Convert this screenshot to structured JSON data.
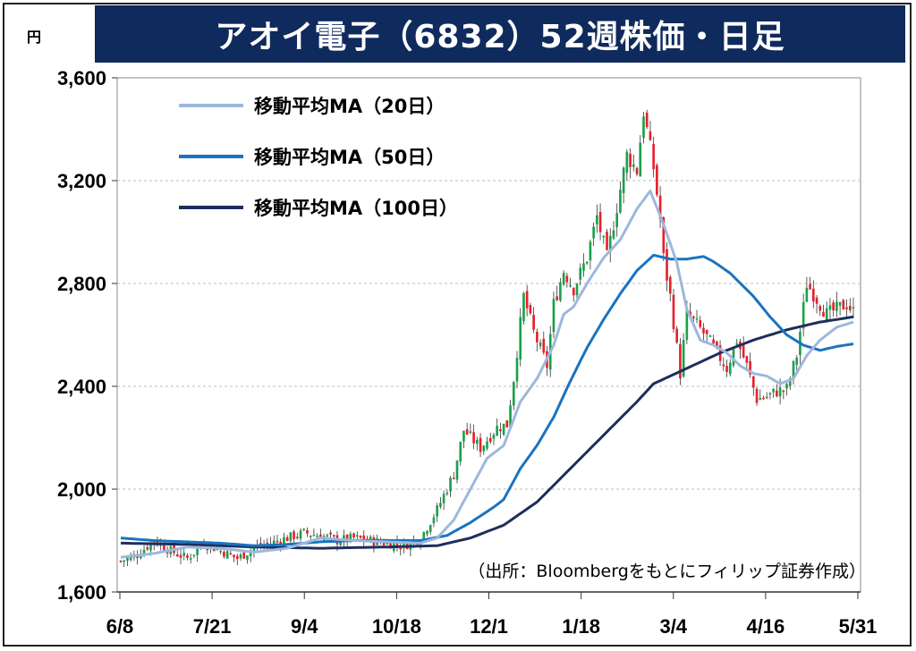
{
  "header": {
    "unit": "円",
    "title": "アオイ電子（6832）52週株価・日足"
  },
  "source_note": "（出所：Bloombergをもとにフィリップ証券作成）",
  "chart_data": {
    "type": "candlestick",
    "title": "アオイ電子（6832）52週株価・日足",
    "ylabel": "円",
    "ylim": [
      1600,
      3600
    ],
    "y_ticks": [
      "3,600",
      "3,200",
      "2,800",
      "2,400",
      "2,000",
      "1,600"
    ],
    "y_tick_values": [
      3600,
      3200,
      2800,
      2400,
      2000,
      1600
    ],
    "x_ticks": [
      "6/8",
      "7/21",
      "9/4",
      "10/18",
      "12/1",
      "1/18",
      "3/4",
      "4/16",
      "5/31"
    ],
    "up_color": "#1aa04a",
    "down_color": "#e81f2a",
    "legend": [
      {
        "label": "移動平均MA（20日）",
        "color": "#9db8dc"
      },
      {
        "label": "移動平均MA（50日）",
        "color": "#1b73c0"
      },
      {
        "label": "移動平均MA（100日）",
        "color": "#1d2f5c"
      }
    ],
    "close_anchors": [
      [
        0,
        1720
      ],
      [
        5,
        1745
      ],
      [
        10,
        1800
      ],
      [
        15,
        1760
      ],
      [
        20,
        1730
      ],
      [
        25,
        1790
      ],
      [
        30,
        1760
      ],
      [
        35,
        1730
      ],
      [
        40,
        1770
      ],
      [
        45,
        1790
      ],
      [
        50,
        1810
      ],
      [
        55,
        1830
      ],
      [
        60,
        1820
      ],
      [
        65,
        1800
      ],
      [
        70,
        1810
      ],
      [
        75,
        1800
      ],
      [
        80,
        1790
      ],
      [
        85,
        1780
      ],
      [
        90,
        1810
      ],
      [
        95,
        1920
      ],
      [
        100,
        2060
      ],
      [
        103,
        2230
      ],
      [
        108,
        2160
      ],
      [
        113,
        2240
      ],
      [
        116,
        2250
      ],
      [
        118,
        2430
      ],
      [
        121,
        2750
      ],
      [
        124,
        2610
      ],
      [
        128,
        2480
      ],
      [
        130,
        2720
      ],
      [
        133,
        2850
      ],
      [
        136,
        2780
      ],
      [
        140,
        2900
      ],
      [
        143,
        3060
      ],
      [
        146,
        2900
      ],
      [
        149,
        3100
      ],
      [
        152,
        3300
      ],
      [
        155,
        3240
      ],
      [
        157,
        3470
      ],
      [
        160,
        3250
      ],
      [
        162,
        3050
      ],
      [
        163,
        2900
      ],
      [
        165,
        2750
      ],
      [
        168,
        2450
      ],
      [
        170,
        2680
      ],
      [
        173,
        2640
      ],
      [
        176,
        2590
      ],
      [
        179,
        2530
      ],
      [
        182,
        2470
      ],
      [
        185,
        2580
      ],
      [
        188,
        2480
      ],
      [
        191,
        2350
      ],
      [
        194,
        2360
      ],
      [
        197,
        2380
      ],
      [
        200,
        2390
      ],
      [
        203,
        2520
      ],
      [
        206,
        2800
      ],
      [
        209,
        2740
      ],
      [
        212,
        2680
      ],
      [
        215,
        2700
      ],
      [
        218,
        2720
      ],
      [
        220,
        2690
      ]
    ],
    "ma20_anchors": [
      [
        0,
        1735
      ],
      [
        10,
        1750
      ],
      [
        20,
        1775
      ],
      [
        30,
        1770
      ],
      [
        40,
        1755
      ],
      [
        50,
        1770
      ],
      [
        60,
        1810
      ],
      [
        70,
        1800
      ],
      [
        80,
        1795
      ],
      [
        90,
        1790
      ],
      [
        95,
        1810
      ],
      [
        100,
        1880
      ],
      [
        105,
        2000
      ],
      [
        110,
        2120
      ],
      [
        115,
        2170
      ],
      [
        120,
        2340
      ],
      [
        125,
        2430
      ],
      [
        130,
        2560
      ],
      [
        133,
        2680
      ],
      [
        136,
        2710
      ],
      [
        140,
        2800
      ],
      [
        145,
        2900
      ],
      [
        150,
        2970
      ],
      [
        155,
        3090
      ],
      [
        159,
        3160
      ],
      [
        163,
        3030
      ],
      [
        167,
        2880
      ],
      [
        170,
        2700
      ],
      [
        174,
        2580
      ],
      [
        178,
        2560
      ],
      [
        182,
        2530
      ],
      [
        186,
        2480
      ],
      [
        190,
        2450
      ],
      [
        194,
        2440
      ],
      [
        198,
        2410
      ],
      [
        202,
        2430
      ],
      [
        206,
        2520
      ],
      [
        210,
        2580
      ],
      [
        215,
        2630
      ],
      [
        220,
        2650
      ]
    ],
    "ma50_anchors": [
      [
        0,
        1810
      ],
      [
        10,
        1800
      ],
      [
        20,
        1795
      ],
      [
        30,
        1790
      ],
      [
        40,
        1780
      ],
      [
        50,
        1785
      ],
      [
        60,
        1795
      ],
      [
        70,
        1800
      ],
      [
        80,
        1800
      ],
      [
        90,
        1800
      ],
      [
        98,
        1820
      ],
      [
        105,
        1870
      ],
      [
        112,
        1930
      ],
      [
        115,
        1960
      ],
      [
        120,
        2080
      ],
      [
        125,
        2170
      ],
      [
        130,
        2280
      ],
      [
        135,
        2420
      ],
      [
        140,
        2550
      ],
      [
        145,
        2660
      ],
      [
        150,
        2760
      ],
      [
        155,
        2850
      ],
      [
        160,
        2910
      ],
      [
        165,
        2895
      ],
      [
        170,
        2895
      ],
      [
        175,
        2905
      ],
      [
        178,
        2885
      ],
      [
        183,
        2840
      ],
      [
        190,
        2750
      ],
      [
        195,
        2670
      ],
      [
        200,
        2600
      ],
      [
        205,
        2560
      ],
      [
        210,
        2540
      ],
      [
        215,
        2555
      ],
      [
        220,
        2565
      ]
    ],
    "ma100_anchors": [
      [
        0,
        1790
      ],
      [
        20,
        1785
      ],
      [
        40,
        1775
      ],
      [
        60,
        1770
      ],
      [
        80,
        1775
      ],
      [
        95,
        1780
      ],
      [
        105,
        1810
      ],
      [
        115,
        1860
      ],
      [
        125,
        1950
      ],
      [
        135,
        2080
      ],
      [
        145,
        2210
      ],
      [
        155,
        2340
      ],
      [
        160,
        2410
      ],
      [
        170,
        2470
      ],
      [
        180,
        2530
      ],
      [
        190,
        2580
      ],
      [
        200,
        2620
      ],
      [
        210,
        2650
      ],
      [
        215,
        2660
      ],
      [
        220,
        2670
      ]
    ],
    "n_days": 221
  }
}
